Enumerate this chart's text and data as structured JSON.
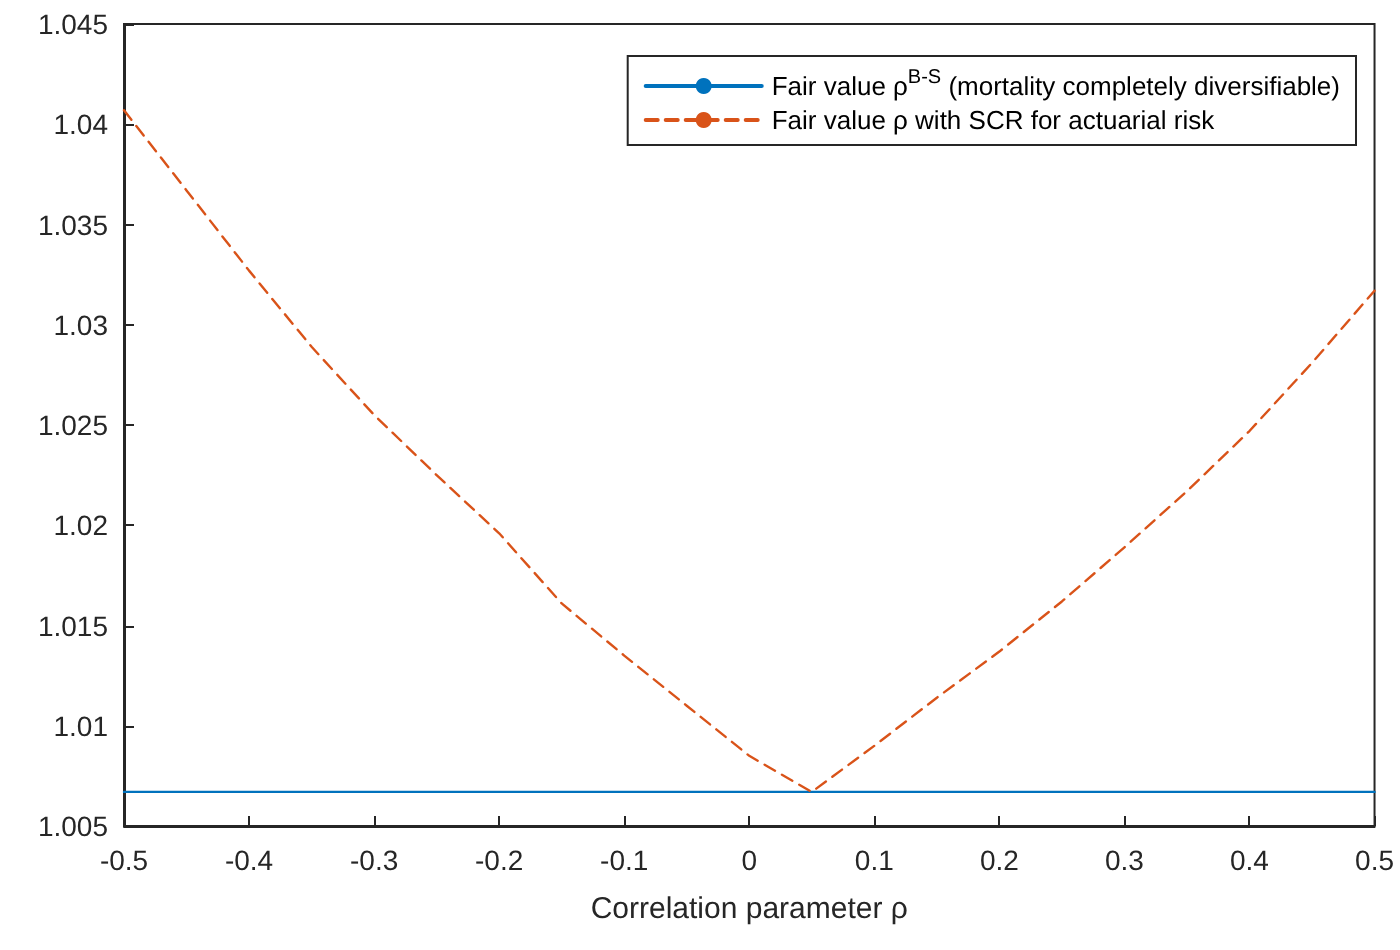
{
  "chart_data": {
    "type": "line",
    "xlabel": "Correlation parameter ρ",
    "xlim": [
      -0.5,
      0.5
    ],
    "xticks": [
      -0.5,
      -0.4,
      -0.3,
      -0.2,
      -0.1,
      0,
      0.1,
      0.2,
      0.3,
      0.4,
      0.5
    ],
    "ylim": [
      1.005,
      1.045
    ],
    "yticks": [
      1.005,
      1.01,
      1.015,
      1.02,
      1.025,
      1.03,
      1.035,
      1.04,
      1.045
    ],
    "grid": false,
    "legend": "top right",
    "marker": "none",
    "series": [
      {
        "name": "Fair value ρ$^{B-S}$ (mortality completely diversifiable)",
        "color": "#0072bd",
        "line_style": "solid",
        "x": [
          -0.5,
          0.5
        ],
        "values": [
          1.0067,
          1.0067
        ]
      },
      {
        "name": "Fair value ρ with SCR for actuarial risk",
        "color": "#d95319",
        "line_style": "dashed",
        "x": [
          -0.5,
          -0.45,
          -0.4,
          -0.35,
          -0.3,
          -0.25,
          -0.2,
          -0.15,
          -0.1,
          -0.05,
          0,
          0.05,
          0.1,
          0.15,
          0.2,
          0.25,
          0.3,
          0.35,
          0.4,
          0.45,
          0.5
        ],
        "values": [
          1.0407,
          1.0367,
          1.0327,
          1.0289,
          1.0255,
          1.0225,
          1.0196,
          1.0161,
          1.0135,
          1.011,
          1.0085,
          1.0067,
          1.009,
          1.0114,
          1.0137,
          1.0162,
          1.0189,
          1.0217,
          1.0247,
          1.0281,
          1.0317
        ]
      }
    ]
  }
}
